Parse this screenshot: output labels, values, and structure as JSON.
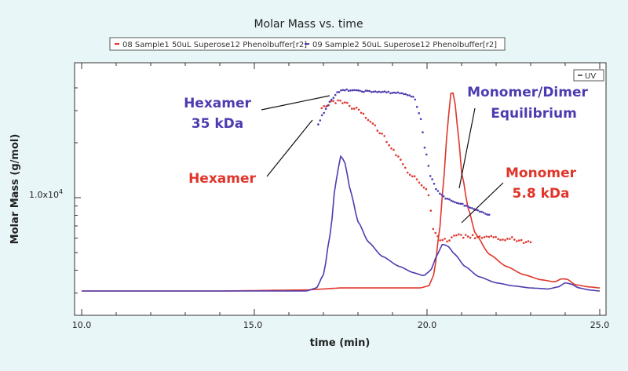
{
  "chart_data": {
    "type": "line",
    "title": "Molar Mass vs. time",
    "xlabel": "time (min)",
    "ylabel": "Molar Mass (g/mol)",
    "xlim": [
      10.0,
      25.0
    ],
    "x_ticks": [
      "10.0",
      "15.0",
      "20.0",
      "25.0"
    ],
    "y_tick_label": "1.0x10",
    "y_tick_exp": "4",
    "y_scale": "log",
    "grid": false,
    "legend": {
      "placement": "top",
      "entries": [
        "08 Sample1 50uL Superose12 Phenolbuffer[r2]",
        "09 Sample2 50uL Superose12 Phenolbuffer[r2]"
      ]
    },
    "uv_legend": "UV",
    "colors": {
      "sample1": "#e0352b",
      "sample2": "#4c3cb0"
    },
    "series": [
      {
        "name": "08 Sample1 50uL Superose12 Phenolbuffer[r2]",
        "kind": "uv",
        "x": [
          10.0,
          12.0,
          14.0,
          16.5,
          17.0,
          17.5,
          19.0,
          19.8,
          20.05,
          20.2,
          20.35,
          20.5,
          20.6,
          20.7,
          20.75,
          20.8,
          20.9,
          21.0,
          21.2,
          21.4,
          21.8,
          22.3,
          22.8,
          23.3,
          23.7,
          23.9,
          24.05,
          24.3,
          24.7,
          25.0
        ],
        "y": [
          0.02,
          0.02,
          0.02,
          0.025,
          0.03,
          0.035,
          0.035,
          0.035,
          0.045,
          0.1,
          0.3,
          0.6,
          0.85,
          1.0,
          0.99,
          0.95,
          0.8,
          0.6,
          0.42,
          0.3,
          0.2,
          0.14,
          0.1,
          0.075,
          0.065,
          0.08,
          0.078,
          0.05,
          0.04,
          0.035
        ]
      },
      {
        "name": "09 Sample2 50uL Superose12 Phenolbuffer[r2]",
        "kind": "uv",
        "x": [
          10.0,
          12.0,
          14.0,
          16.5,
          16.8,
          17.0,
          17.2,
          17.35,
          17.5,
          17.6,
          17.8,
          18.0,
          18.3,
          18.7,
          19.2,
          19.6,
          19.9,
          20.1,
          20.3,
          20.45,
          20.6,
          20.8,
          21.1,
          21.5,
          22.0,
          22.5,
          23.0,
          23.5,
          23.8,
          24.0,
          24.15,
          24.4,
          24.7,
          25.0
        ],
        "y": [
          0.02,
          0.02,
          0.02,
          0.02,
          0.035,
          0.1,
          0.3,
          0.55,
          0.68,
          0.66,
          0.5,
          0.36,
          0.26,
          0.19,
          0.14,
          0.11,
          0.095,
          0.12,
          0.2,
          0.25,
          0.24,
          0.2,
          0.14,
          0.09,
          0.06,
          0.045,
          0.035,
          0.03,
          0.04,
          0.06,
          0.055,
          0.035,
          0.025,
          0.02
        ]
      },
      {
        "name": "08 Sample1 50uL Superose12 Phenolbuffer[r2]",
        "kind": "molar_mass",
        "x": [
          16.95,
          17.2,
          17.5,
          17.9,
          18.3,
          18.7,
          19.1,
          19.5,
          19.8,
          20.0,
          20.2,
          20.4,
          20.6,
          20.8,
          21.0,
          21.3,
          21.6,
          22.0,
          22.4,
          22.7,
          23.0
        ],
        "y": [
          31000,
          33000,
          34000,
          31000,
          27000,
          22000,
          17500,
          13500,
          12000,
          11000,
          6500,
          5700,
          5900,
          6200,
          6150,
          6100,
          6050,
          6000,
          5950,
          5800,
          5700
        ]
      },
      {
        "name": "09 Sample2 50uL Superose12 Phenolbuffer[r2]",
        "kind": "molar_mass",
        "x": [
          16.85,
          17.0,
          17.2,
          17.4,
          17.6,
          18.0,
          18.6,
          19.2,
          19.6,
          19.8,
          19.95,
          20.1,
          20.3,
          20.6,
          21.0,
          21.4,
          21.8
        ],
        "y": [
          25000,
          29000,
          34000,
          37500,
          39000,
          38500,
          38000,
          37500,
          36000,
          28000,
          18000,
          13000,
          10800,
          9800,
          9200,
          8600,
          8100
        ]
      }
    ],
    "annotations": [
      {
        "text": "Hexamer",
        "color": "sample2"
      },
      {
        "text": "35 kDa",
        "color": "sample2"
      },
      {
        "text": "Hexamer",
        "color": "sample1"
      },
      {
        "text": "Monomer/Dimer",
        "color": "sample2"
      },
      {
        "text": "Equilibrium",
        "color": "sample2"
      },
      {
        "text": "Monomer",
        "color": "sample1"
      },
      {
        "text": "5.8 kDa",
        "color": "sample1"
      }
    ]
  }
}
